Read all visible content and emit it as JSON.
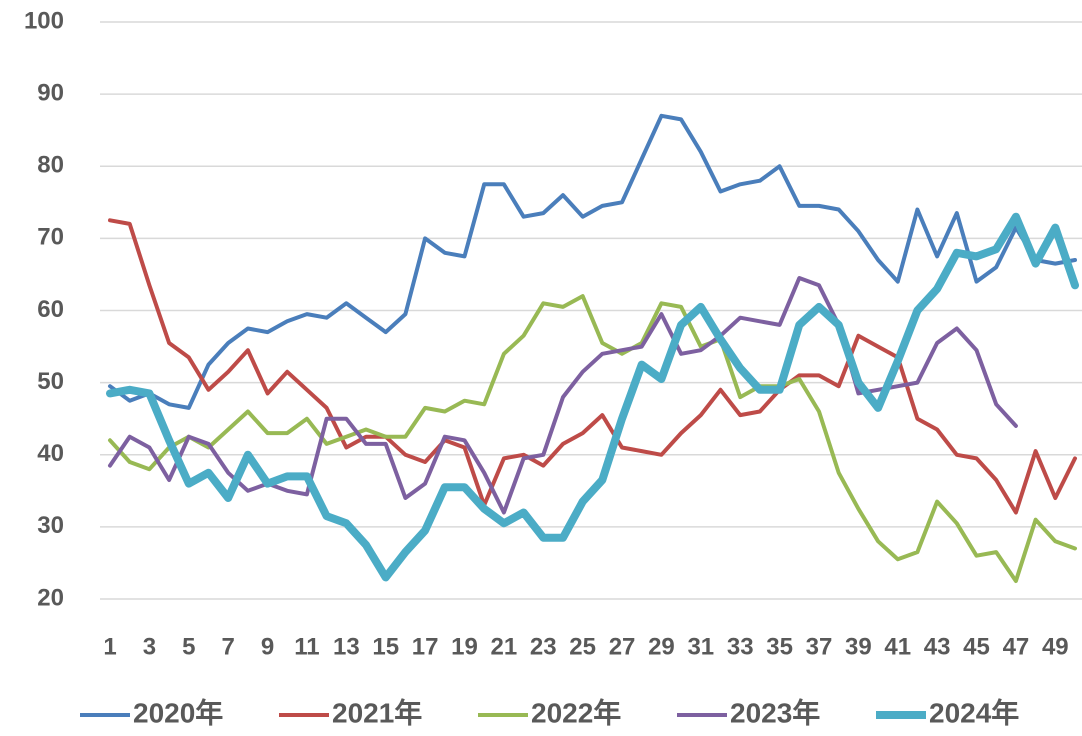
{
  "chart_data": {
    "type": "line",
    "categories": [
      1,
      null,
      3,
      null,
      5,
      null,
      7,
      null,
      9,
      null,
      11,
      null,
      13,
      null,
      15,
      null,
      17,
      null,
      19,
      null,
      21,
      null,
      23,
      null,
      25,
      null,
      27,
      null,
      29,
      null,
      31,
      null,
      33,
      null,
      35,
      null,
      37,
      null,
      39,
      null,
      41,
      null,
      43,
      null,
      45,
      null,
      47,
      null,
      49,
      null
    ],
    "ylim": [
      20,
      100
    ],
    "yticks": [
      20,
      30,
      40,
      50,
      60,
      70,
      80,
      90,
      100
    ],
    "grid": true,
    "legend": "bottom",
    "series": [
      {
        "name": "2020年",
        "color": "#4a7ebb",
        "values": [
          49.5,
          47.5,
          48.5,
          47,
          46.5,
          52.5,
          55.5,
          57.5,
          57,
          58.5,
          59.5,
          59,
          61,
          59,
          57,
          59.5,
          70,
          68,
          67.5,
          77.5,
          77.5,
          73,
          73.5,
          76,
          73,
          74.5,
          75,
          81,
          87,
          86.5,
          82,
          76.5,
          77.5,
          78,
          80,
          74.5,
          74.5,
          74,
          71,
          67,
          64,
          74,
          67.5,
          73.5,
          64,
          66,
          71.5,
          67,
          66.5,
          67
        ]
      },
      {
        "name": "2021年",
        "color": "#be4b48",
        "values": [
          72.5,
          72,
          63.5,
          55.5,
          53.5,
          49,
          51.5,
          54.5,
          48.5,
          51.5,
          49,
          46.5,
          41,
          42.5,
          42.5,
          40,
          39,
          42,
          41,
          33,
          39.5,
          40,
          38.5,
          41.5,
          43,
          45.5,
          41,
          40.5,
          40,
          43,
          45.5,
          49,
          45.5,
          46,
          49,
          51,
          51,
          49.5,
          56.5,
          55,
          53.5,
          45,
          43.5,
          40,
          39.5,
          36.5,
          32,
          40.5,
          34,
          39.5
        ]
      },
      {
        "name": "2022年",
        "color": "#98b954",
        "values": [
          42,
          39,
          38,
          41,
          42.5,
          41,
          43.5,
          46,
          43,
          43,
          45,
          41.5,
          42.5,
          43.5,
          42.5,
          42.5,
          46.5,
          46,
          47.5,
          47,
          54,
          56.5,
          61,
          60.5,
          62,
          55.5,
          54,
          55.5,
          61,
          60.5,
          55,
          56,
          48,
          49.5,
          49.5,
          50.5,
          46,
          37.5,
          32.5,
          28,
          25.5,
          26.5,
          33.5,
          30.5,
          26,
          26.5,
          22.5,
          31,
          28,
          27
        ]
      },
      {
        "name": "2023年",
        "color": "#7d60a0",
        "values": [
          38.5,
          42.5,
          41,
          36.5,
          42.5,
          41.5,
          37.5,
          35,
          36,
          35,
          34.5,
          45,
          45,
          41.5,
          41.5,
          34,
          36,
          42.5,
          42,
          37.5,
          32,
          39.5,
          40,
          48,
          51.5,
          54,
          54.5,
          55,
          59.5,
          54,
          54.5,
          56.5,
          59,
          58.5,
          58,
          64.5,
          63.5,
          58,
          48.5,
          49,
          49.5,
          50,
          55.5,
          57.5,
          54.5,
          47,
          44,
          null,
          null,
          null
        ]
      },
      {
        "name": "2024年",
        "color": "#4bacc6",
        "width": 8,
        "values": [
          48.5,
          49,
          48.5,
          42,
          36,
          37.5,
          34,
          40,
          36,
          37,
          37,
          31.5,
          30.5,
          27.5,
          23,
          26.5,
          29.5,
          35.5,
          35.5,
          32.5,
          30.5,
          32,
          28.5,
          28.5,
          33.5,
          36.5,
          45,
          52.5,
          50.5,
          58,
          60.5,
          56,
          52,
          49,
          49,
          58,
          60.5,
          58,
          50,
          46.5,
          53,
          60,
          63,
          68,
          67.5,
          68.5,
          73,
          66.5,
          71.5,
          63.5
        ]
      }
    ]
  }
}
